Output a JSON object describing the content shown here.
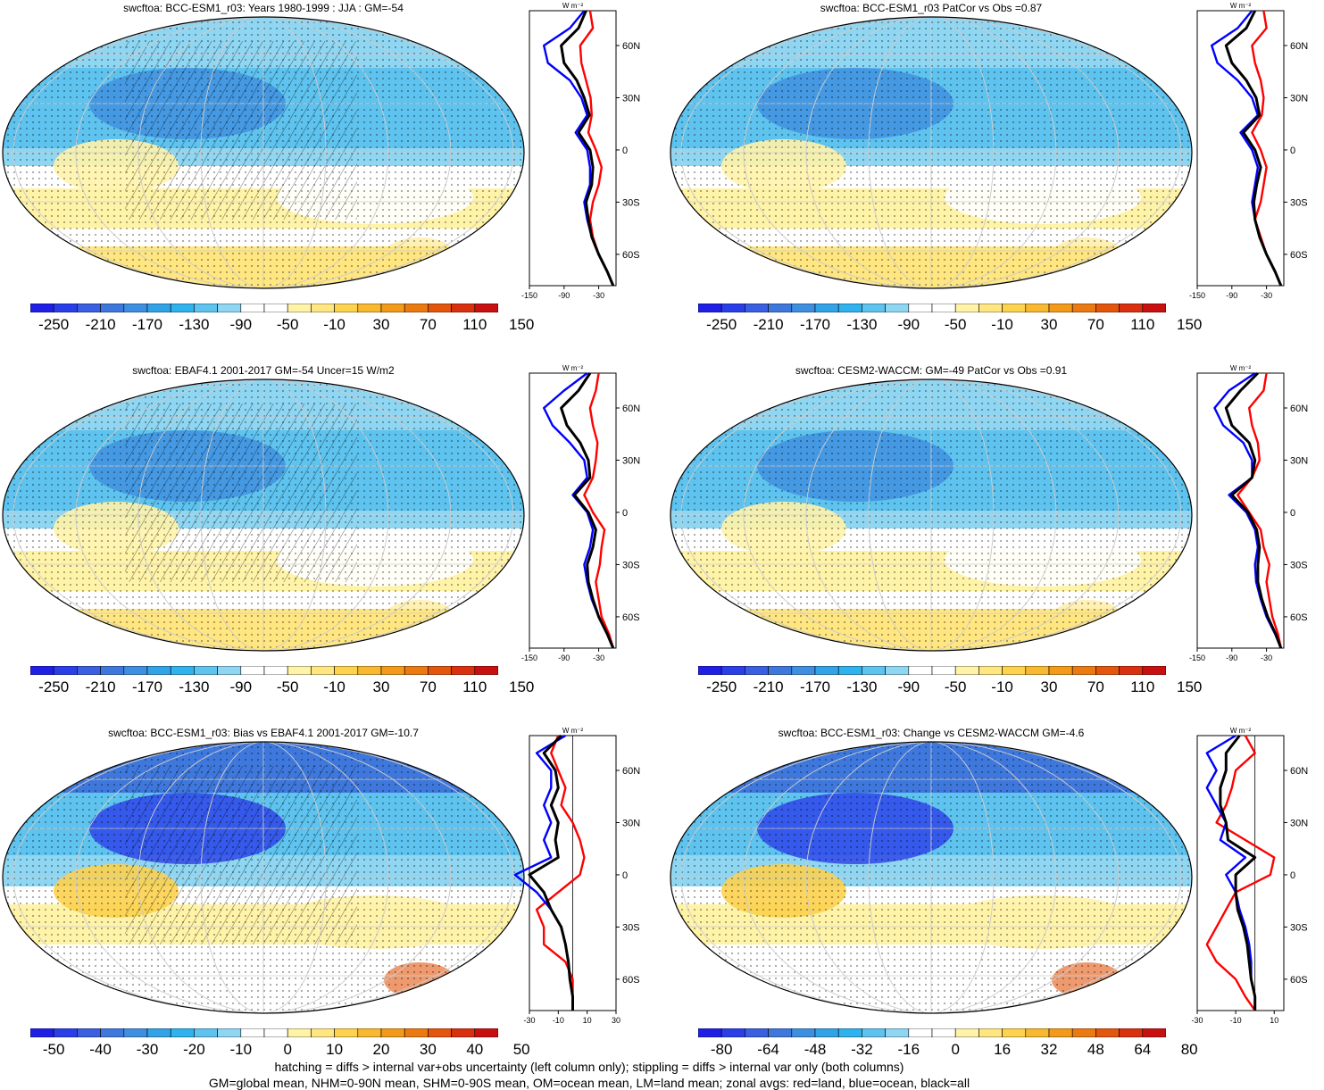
{
  "footer": {
    "line1": "hatching = diffs > internal var+obs uncertainty (left column only); stippling = diffs > internal var only (both columns)",
    "line2": "GM=global mean, NHM=0-90N mean, SHM=0-90S mean, OM=ocean mean, LM=land mean; zonal avgs: red=land, blue=ocean, black=all"
  },
  "colors": {
    "land_line": "#ff0000",
    "ocean_line": "#0000ff",
    "all_line": "#000000",
    "palette": [
      "#1f1fe6",
      "#2a3fe8",
      "#3a5fe0",
      "#3f78dd",
      "#3f8fe0",
      "#33a3e8",
      "#2fb2ee",
      "#5ec3ee",
      "#8ed6f2",
      "#ffffff",
      "#ffffff",
      "#fff3a8",
      "#ffe680",
      "#fcd24e",
      "#f8b830",
      "#f39a1a",
      "#ec7a12",
      "#e4560e",
      "#d93010",
      "#c81010"
    ]
  },
  "units": "W m",
  "lat_ticks": [
    "60N",
    "30N",
    "0",
    "30S",
    "60S"
  ],
  "chart_data": [
    {
      "type": "map",
      "title": "swcftoa: BCC-ESM1_r03: Years 1980-1999 : JJA : GM=-54",
      "colorbar_labels": [
        "-250",
        "-210",
        "-170",
        "-130",
        "-90",
        "-50",
        "-10",
        "30",
        "70",
        "110",
        "150"
      ],
      "zonal_xticks": [
        "-150",
        "-90",
        "-30"
      ],
      "zonal_xlim": [
        -150,
        0
      ],
      "hatched": true,
      "lat": [
        80,
        70,
        60,
        50,
        40,
        30,
        20,
        10,
        0,
        -10,
        -20,
        -30,
        -40,
        -50,
        -60,
        -70,
        -78
      ],
      "series": [
        {
          "name": "land",
          "values": [
            -45,
            -40,
            -62,
            -60,
            -52,
            -44,
            -42,
            -48,
            -35,
            -25,
            -30,
            -40,
            -45,
            -40,
            -30,
            -15,
            -5
          ]
        },
        {
          "name": "ocean",
          "values": [
            -55,
            -80,
            -125,
            -118,
            -80,
            -60,
            -50,
            -70,
            -50,
            -45,
            -45,
            -55,
            -50,
            -42,
            -30,
            -15,
            -5
          ]
        },
        {
          "name": "all",
          "values": [
            -52,
            -65,
            -95,
            -90,
            -68,
            -55,
            -46,
            -65,
            -45,
            -40,
            -42,
            -52,
            -48,
            -42,
            -30,
            -15,
            -5
          ]
        }
      ]
    },
    {
      "type": "map",
      "title": "swcftoa: BCC-ESM1_r03 PatCor vs Obs =0.87",
      "colorbar_labels": [
        "-250",
        "-210",
        "-170",
        "-130",
        "-90",
        "-50",
        "-10",
        "30",
        "70",
        "110",
        "150"
      ],
      "zonal_xticks": [
        "-150",
        "-90",
        "-30"
      ],
      "zonal_xlim": [
        -150,
        0
      ],
      "hatched": false,
      "lat": [
        80,
        70,
        60,
        50,
        40,
        30,
        20,
        10,
        0,
        -10,
        -20,
        -30,
        -40,
        -50,
        -60,
        -70,
        -78
      ],
      "series": [
        {
          "name": "land",
          "values": [
            -35,
            -30,
            -55,
            -50,
            -40,
            -35,
            -38,
            -55,
            -40,
            -30,
            -35,
            -40,
            -50,
            -40,
            -30,
            -15,
            -5
          ]
        },
        {
          "name": "ocean",
          "values": [
            -55,
            -80,
            -125,
            -115,
            -80,
            -55,
            -45,
            -75,
            -55,
            -45,
            -50,
            -55,
            -50,
            -42,
            -30,
            -15,
            -5
          ]
        },
        {
          "name": "all",
          "values": [
            -50,
            -65,
            -100,
            -90,
            -65,
            -48,
            -42,
            -70,
            -50,
            -40,
            -47,
            -52,
            -50,
            -42,
            -30,
            -15,
            -5
          ]
        }
      ]
    },
    {
      "type": "map",
      "title": "swcftoa: EBAF4.1 2001-2017 GM=-54 Uncer=15 W/m2",
      "colorbar_labels": [
        "-250",
        "-210",
        "-170",
        "-130",
        "-90",
        "-50",
        "-10",
        "30",
        "70",
        "110",
        "150"
      ],
      "zonal_xticks": [
        "-150",
        "-90",
        "-30"
      ],
      "zonal_xlim": [
        -150,
        0
      ],
      "hatched": true,
      "lat": [
        80,
        70,
        60,
        50,
        40,
        30,
        20,
        10,
        0,
        -10,
        -20,
        -30,
        -40,
        -50,
        -60,
        -70,
        -78
      ],
      "series": [
        {
          "name": "land",
          "values": [
            -30,
            -35,
            -45,
            -40,
            -32,
            -35,
            -40,
            -55,
            -40,
            -20,
            -25,
            -28,
            -35,
            -30,
            -25,
            -12,
            -5
          ]
        },
        {
          "name": "ocean",
          "values": [
            -50,
            -90,
            -125,
            -110,
            -80,
            -55,
            -50,
            -75,
            -50,
            -40,
            -45,
            -55,
            -50,
            -42,
            -30,
            -15,
            -5
          ]
        },
        {
          "name": "all",
          "values": [
            -45,
            -65,
            -95,
            -85,
            -62,
            -48,
            -45,
            -72,
            -48,
            -35,
            -40,
            -50,
            -48,
            -40,
            -30,
            -15,
            -5
          ]
        }
      ]
    },
    {
      "type": "map",
      "title": "swcftoa: CESM2-WACCM: GM=-49 PatCor vs Obs =0.91",
      "colorbar_labels": [
        "-250",
        "-210",
        "-170",
        "-130",
        "-90",
        "-50",
        "-10",
        "30",
        "70",
        "110",
        "150"
      ],
      "zonal_xticks": [
        "-150",
        "-90",
        "-30"
      ],
      "zonal_xlim": [
        -150,
        0
      ],
      "hatched": false,
      "lat": [
        80,
        70,
        60,
        50,
        40,
        30,
        20,
        10,
        0,
        -10,
        -20,
        -30,
        -40,
        -50,
        -60,
        -70,
        -78
      ],
      "series": [
        {
          "name": "land",
          "values": [
            -30,
            -35,
            -60,
            -55,
            -45,
            -42,
            -55,
            -80,
            -60,
            -40,
            -35,
            -25,
            -30,
            -25,
            -20,
            -10,
            -5
          ]
        },
        {
          "name": "ocean",
          "values": [
            -50,
            -95,
            -120,
            -105,
            -70,
            -55,
            -55,
            -95,
            -65,
            -50,
            -45,
            -50,
            -48,
            -40,
            -30,
            -15,
            -5
          ]
        },
        {
          "name": "all",
          "values": [
            -45,
            -75,
            -100,
            -90,
            -60,
            -50,
            -55,
            -90,
            -62,
            -47,
            -42,
            -45,
            -45,
            -38,
            -28,
            -14,
            -5
          ]
        }
      ]
    },
    {
      "type": "map",
      "title": "swcftoa: BCC-ESM1_r03: Bias vs EBAF4.1 2001-2017 GM=-10.7",
      "colorbar_labels": [
        "-50",
        "-40",
        "-30",
        "-20",
        "-10",
        "0",
        "10",
        "20",
        "30",
        "40",
        "50"
      ],
      "zonal_xticks": [
        "-30",
        "-10",
        "10",
        "30"
      ],
      "zonal_xlim": [
        -30,
        30
      ],
      "hatched": true,
      "lat": [
        80,
        70,
        60,
        50,
        40,
        30,
        20,
        10,
        0,
        -10,
        -20,
        -30,
        -40,
        -50,
        -60,
        -70,
        -78
      ],
      "series": [
        {
          "name": "land",
          "values": [
            -10,
            -15,
            -10,
            -5,
            -8,
            0,
            5,
            8,
            5,
            -10,
            -25,
            -20,
            -20,
            -5,
            0,
            0,
            0
          ]
        },
        {
          "name": "ocean",
          "values": [
            -5,
            -25,
            -15,
            -15,
            -20,
            -15,
            -20,
            -15,
            -40,
            -25,
            -15,
            -8,
            -5,
            -3,
            -2,
            0,
            0
          ]
        },
        {
          "name": "all",
          "values": [
            -8,
            -20,
            -12,
            -10,
            -15,
            -10,
            -12,
            -10,
            -30,
            -20,
            -15,
            -8,
            -5,
            -3,
            -2,
            0,
            0
          ]
        }
      ]
    },
    {
      "type": "map",
      "title": "swcftoa: BCC-ESM1_r03: Change vs CESM2-WACCM GM=-4.6",
      "colorbar_labels": [
        "-80",
        "-64",
        "-48",
        "-32",
        "-16",
        "0",
        "16",
        "32",
        "48",
        "64",
        "80"
      ],
      "zonal_xticks": [
        "-30",
        "-10",
        "10"
      ],
      "zonal_xlim": [
        -30,
        15
      ],
      "hatched": false,
      "lat": [
        80,
        70,
        60,
        50,
        40,
        30,
        20,
        10,
        0,
        -10,
        -20,
        -30,
        -40,
        -50,
        -60,
        -70,
        -78
      ],
      "series": [
        {
          "name": "land",
          "values": [
            -5,
            0,
            -10,
            -12,
            -15,
            -20,
            -5,
            10,
            8,
            -10,
            -15,
            -20,
            -25,
            -20,
            -10,
            -5,
            0
          ]
        },
        {
          "name": "ocean",
          "values": [
            -10,
            -25,
            -20,
            -25,
            -20,
            -15,
            -18,
            -5,
            -15,
            -10,
            -8,
            -5,
            -3,
            -2,
            -2,
            0,
            0
          ]
        },
        {
          "name": "all",
          "values": [
            -8,
            -15,
            -15,
            -18,
            -18,
            -15,
            -14,
            0,
            -10,
            -10,
            -9,
            -6,
            -4,
            -3,
            -2,
            0,
            0
          ]
        }
      ]
    }
  ]
}
